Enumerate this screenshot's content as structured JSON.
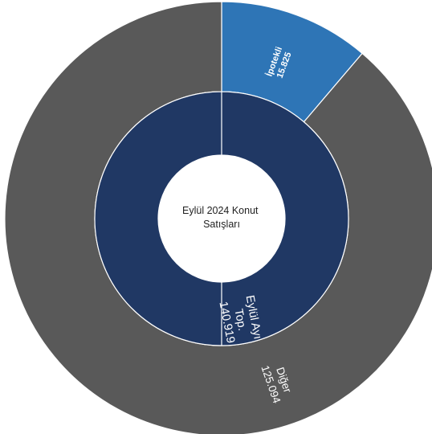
{
  "chart_data": {
    "type": "sunburst",
    "center_title": [
      "Eylül 2024 Konut",
      "Satışları"
    ],
    "inner_ring": {
      "segments": [
        {
          "label_lines": [
            "Eylül Ayı",
            "Top.",
            "140.919"
          ],
          "value": 140919,
          "color": "#203864"
        }
      ]
    },
    "outer_ring": {
      "segments": [
        {
          "label_lines": [
            "İpotekli",
            "15.825"
          ],
          "value": 15825,
          "color": "#2e75b6"
        },
        {
          "label_lines": [
            "Diğer",
            "125.094"
          ],
          "value": 125094,
          "color": "#595959"
        }
      ]
    }
  }
}
